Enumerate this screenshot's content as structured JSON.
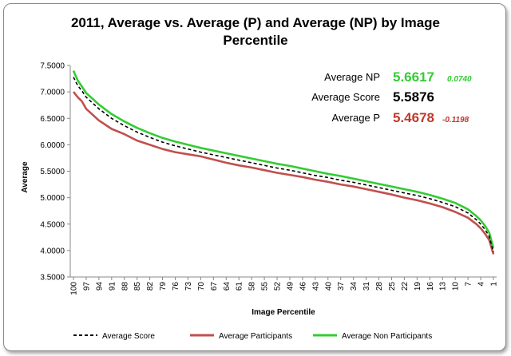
{
  "chart_data": {
    "type": "line",
    "title": "2011, Average vs. Average (P) and Average (NP) by Image Percentile",
    "xlabel": "Image Percentile",
    "ylabel": "Average",
    "ylim": [
      3.5,
      7.5
    ],
    "yticks": [
      "7.5000",
      "7.0000",
      "6.5000",
      "6.0000",
      "5.5000",
      "5.0000",
      "4.5000",
      "4.0000",
      "3.5000"
    ],
    "ytick_values": [
      7.5,
      7.0,
      6.5,
      6.0,
      5.5,
      5.0,
      4.5,
      4.0,
      3.5
    ],
    "x_range": [
      100,
      1
    ],
    "xticks": [
      100,
      97,
      94,
      91,
      88,
      85,
      82,
      79,
      76,
      73,
      70,
      67,
      64,
      61,
      58,
      55,
      52,
      49,
      46,
      43,
      40,
      37,
      34,
      31,
      28,
      25,
      22,
      19,
      16,
      13,
      10,
      7,
      4,
      1
    ],
    "grid": false,
    "legend_position": "bottom",
    "series": [
      {
        "name": "Average Score",
        "style": "dashed",
        "color": "#000000",
        "x": [
          100,
          99,
          98,
          97,
          94,
          91,
          88,
          85,
          82,
          79,
          76,
          73,
          70,
          67,
          64,
          61,
          58,
          55,
          52,
          49,
          46,
          43,
          40,
          37,
          34,
          31,
          28,
          25,
          22,
          19,
          16,
          13,
          10,
          7,
          5,
          4,
          3,
          2,
          1
        ],
        "values": [
          7.28,
          7.12,
          7.02,
          6.9,
          6.68,
          6.5,
          6.36,
          6.24,
          6.14,
          6.05,
          5.98,
          5.92,
          5.86,
          5.81,
          5.76,
          5.71,
          5.66,
          5.61,
          5.56,
          5.52,
          5.47,
          5.42,
          5.38,
          5.33,
          5.29,
          5.24,
          5.19,
          5.14,
          5.09,
          5.04,
          4.98,
          4.91,
          4.83,
          4.71,
          4.58,
          4.5,
          4.4,
          4.27,
          3.97
        ]
      },
      {
        "name": "Average Participants",
        "style": "solid",
        "color": "#c0504d",
        "x": [
          100,
          99,
          98,
          97,
          94,
          91,
          88,
          85,
          82,
          79,
          76,
          73,
          70,
          67,
          64,
          61,
          58,
          55,
          52,
          49,
          46,
          43,
          40,
          37,
          34,
          31,
          28,
          25,
          22,
          19,
          16,
          13,
          10,
          7,
          5,
          4,
          3,
          2,
          1
        ],
        "values": [
          7.0,
          6.9,
          6.82,
          6.68,
          6.46,
          6.3,
          6.2,
          6.08,
          6.0,
          5.92,
          5.86,
          5.82,
          5.78,
          5.72,
          5.66,
          5.61,
          5.57,
          5.52,
          5.47,
          5.43,
          5.39,
          5.34,
          5.3,
          5.25,
          5.21,
          5.16,
          5.11,
          5.06,
          5.0,
          4.95,
          4.89,
          4.82,
          4.73,
          4.62,
          4.5,
          4.42,
          4.32,
          4.2,
          3.93
        ]
      },
      {
        "name": "Average Non Participants",
        "style": "solid",
        "color": "#33cc33",
        "x": [
          100,
          99,
          98,
          97,
          94,
          91,
          88,
          85,
          82,
          79,
          76,
          73,
          70,
          67,
          64,
          61,
          58,
          55,
          52,
          49,
          46,
          43,
          40,
          37,
          34,
          31,
          28,
          25,
          22,
          19,
          16,
          13,
          10,
          7,
          5,
          4,
          3,
          2,
          1
        ],
        "values": [
          7.4,
          7.22,
          7.1,
          6.98,
          6.76,
          6.58,
          6.44,
          6.32,
          6.22,
          6.13,
          6.06,
          6.0,
          5.94,
          5.89,
          5.84,
          5.79,
          5.74,
          5.69,
          5.64,
          5.6,
          5.55,
          5.5,
          5.45,
          5.41,
          5.36,
          5.31,
          5.26,
          5.21,
          5.16,
          5.11,
          5.05,
          4.98,
          4.9,
          4.78,
          4.65,
          4.57,
          4.47,
          4.34,
          4.05
        ]
      }
    ],
    "annotations": {
      "np": {
        "label": "Average NP",
        "value": "5.6617",
        "diff": "0.0740",
        "color": "#33cc33"
      },
      "score": {
        "label": "Average Score",
        "value": "5.5876",
        "color": "#000000"
      },
      "p": {
        "label": "Average P",
        "value": "5.4678",
        "diff": "-0.1198",
        "color": "#c0392b"
      }
    }
  },
  "title_lines": [
    "2011, Average vs. Average (P) and Average (NP) by Image",
    "Percentile"
  ]
}
